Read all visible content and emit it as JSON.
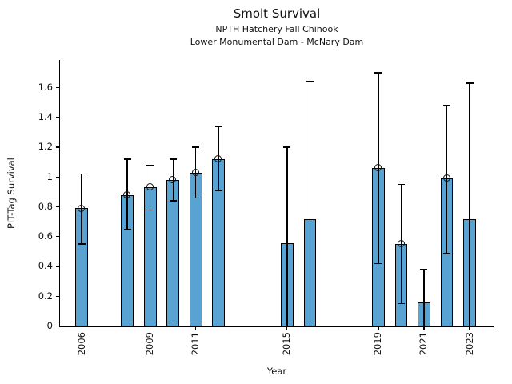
{
  "chart_data": {
    "type": "bar",
    "title": "Smolt Survival",
    "subtitle_line1": "NPTH Hatchery Fall Chinook",
    "subtitle_line2": "Lower Monumental Dam - McNary Dam",
    "xlabel": "Year",
    "ylabel": "PIT-Tag Survival",
    "xlim": [
      2005.05,
      2024.05
    ],
    "ylim": [
      0,
      1.785
    ],
    "grid": false,
    "legend": "none",
    "bar_color": "#58a3d1",
    "bar_edge_color": "#000000",
    "bar_width_years": 0.55,
    "yticks": [
      0,
      0.2,
      0.4,
      0.6,
      0.8,
      1,
      1.2,
      1.4,
      1.6
    ],
    "ytick_labels": [
      "0",
      "0.2",
      "0.4",
      "0.6",
      "0.8",
      "1",
      "1.2",
      "1.4",
      "1.6"
    ],
    "xticks": [
      2006,
      2009,
      2011,
      2015,
      2019,
      2021,
      2023
    ],
    "series": [
      {
        "year": 2006,
        "value": 0.79,
        "ci_low": 0.55,
        "ci_high": 1.02,
        "marker": true,
        "cap_low": true
      },
      {
        "year": 2008,
        "value": 0.88,
        "ci_low": 0.65,
        "ci_high": 1.12,
        "marker": true,
        "cap_low": true
      },
      {
        "year": 2009,
        "value": 0.93,
        "ci_low": 0.78,
        "ci_high": 1.08,
        "marker": true,
        "cap_low": true
      },
      {
        "year": 2010,
        "value": 0.98,
        "ci_low": 0.84,
        "ci_high": 1.12,
        "marker": true,
        "cap_low": true
      },
      {
        "year": 2011,
        "value": 1.03,
        "ci_low": 0.86,
        "ci_high": 1.2,
        "marker": true,
        "cap_low": true
      },
      {
        "year": 2012,
        "value": 1.12,
        "ci_low": 0.91,
        "ci_high": 1.34,
        "marker": true,
        "cap_low": true
      },
      {
        "year": 2015,
        "value": 0.555,
        "ci_low": 0.0,
        "ci_high": 1.2,
        "marker": false,
        "cap_low": false
      },
      {
        "year": 2016,
        "value": 0.715,
        "ci_low": 0.0,
        "ci_high": 1.64,
        "marker": false,
        "cap_low": false
      },
      {
        "year": 2019,
        "value": 1.06,
        "ci_low": 0.42,
        "ci_high": 1.7,
        "marker": true,
        "cap_low": true
      },
      {
        "year": 2020,
        "value": 0.55,
        "ci_low": 0.15,
        "ci_high": 0.95,
        "marker": true,
        "cap_low": true
      },
      {
        "year": 2021,
        "value": 0.16,
        "ci_low": 0.0,
        "ci_high": 0.38,
        "marker": false,
        "cap_low": false
      },
      {
        "year": 2022,
        "value": 0.99,
        "ci_low": 0.49,
        "ci_high": 1.48,
        "marker": true,
        "cap_low": true
      },
      {
        "year": 2023,
        "value": 0.715,
        "ci_low": 0.0,
        "ci_high": 1.63,
        "marker": false,
        "cap_low": false
      }
    ]
  }
}
